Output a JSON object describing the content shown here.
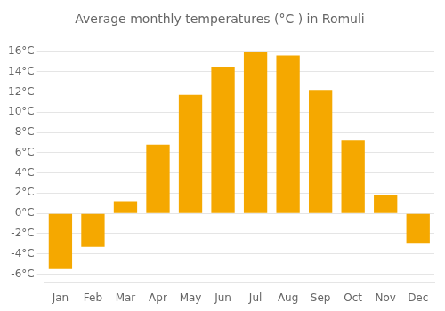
{
  "chart_data": {
    "type": "bar",
    "title": "Average monthly temperatures (°C ) in Romuli",
    "categories": [
      "Jan",
      "Feb",
      "Mar",
      "Apr",
      "May",
      "Jun",
      "Jul",
      "Aug",
      "Sep",
      "Oct",
      "Nov",
      "Dec"
    ],
    "values": [
      -5.5,
      -3.3,
      1.2,
      6.8,
      11.7,
      14.5,
      16.0,
      15.6,
      12.2,
      7.2,
      1.8,
      -3.0
    ],
    "color": "#F5A800",
    "ylim": [
      -6.8,
      17.5
    ],
    "yticks": [
      {
        "value": -6,
        "label": "-6°C"
      },
      {
        "value": -4,
        "label": "-4°C"
      },
      {
        "value": -2,
        "label": "-2°C"
      },
      {
        "value": 0,
        "label": "0°C"
      },
      {
        "value": 2,
        "label": "2°C"
      },
      {
        "value": 4,
        "label": "4°C"
      },
      {
        "value": 6,
        "label": "6°C"
      },
      {
        "value": 8,
        "label": "8°C"
      },
      {
        "value": 10,
        "label": "10°C"
      },
      {
        "value": 12,
        "label": "12°C"
      },
      {
        "value": 14,
        "label": "14°C"
      },
      {
        "value": 16,
        "label": "16°C"
      }
    ],
    "grid": true
  }
}
